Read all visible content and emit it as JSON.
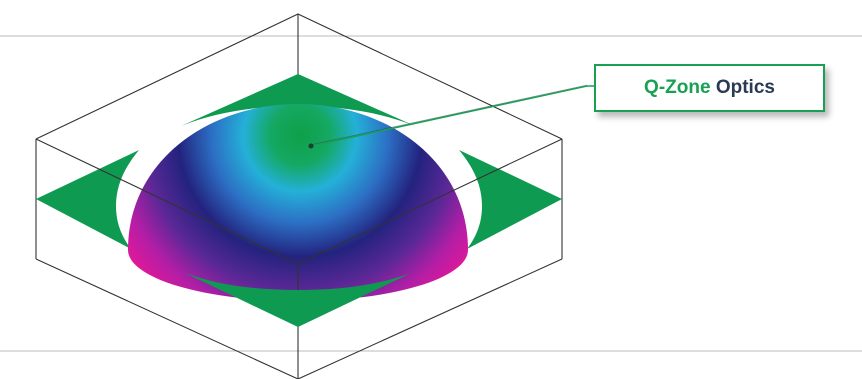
{
  "callout": {
    "label_part1": "Q-Zone",
    "label_part2": "Optics"
  },
  "colors": {
    "accent_green": "#1aa052",
    "arrow_green": "#0f9a52",
    "dome_top": "#10a048",
    "dome_mid": "#24b0d8",
    "dome_deep": "#23237e",
    "dome_base": "#e0189a",
    "box_line": "#333333",
    "rule_line": "#bbbbbb"
  }
}
